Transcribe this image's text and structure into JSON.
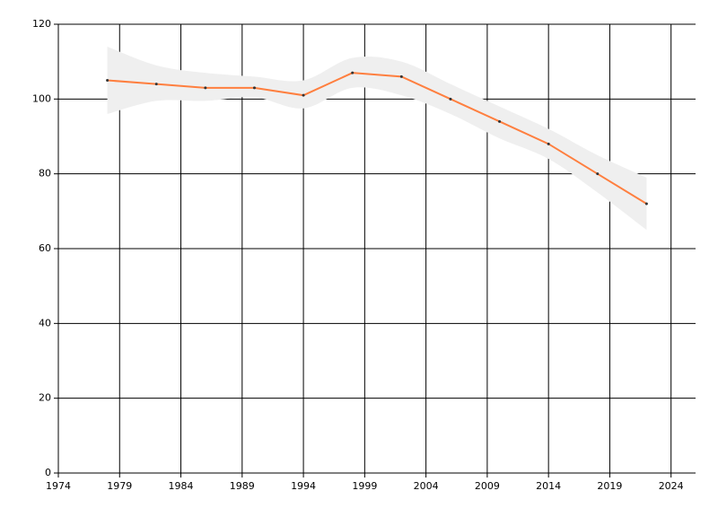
{
  "chart_data": {
    "type": "line",
    "x": [
      1978,
      1982,
      1986,
      1990,
      1994,
      1998,
      2002,
      2006,
      2010,
      2014,
      2018,
      2022
    ],
    "series": [
      {
        "color": "#ff7f3f",
        "values": [
          105,
          104,
          103,
          103,
          101,
          107,
          106,
          100,
          94,
          88,
          80,
          72
        ],
        "band_color": "#efefef",
        "upper": [
          114,
          109,
          107,
          106,
          105,
          111,
          110,
          104,
          98,
          92,
          85,
          79
        ],
        "lower": [
          96,
          99.5,
          99.5,
          100.5,
          97.5,
          103,
          101,
          96,
          89.5,
          84,
          75,
          65
        ]
      }
    ],
    "xlim": [
      1974,
      2026
    ],
    "xticks": [
      1974,
      1979,
      1984,
      1989,
      1994,
      1999,
      2004,
      2009,
      2014,
      2019,
      2024
    ],
    "ylim": [
      0,
      120
    ],
    "yticks": [
      0,
      20,
      40,
      60,
      80,
      100,
      120
    ],
    "grid": true
  }
}
